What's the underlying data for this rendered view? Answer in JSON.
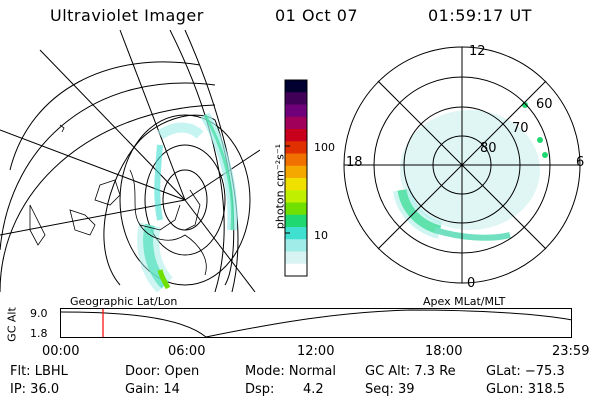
{
  "header": {
    "instrument": "Ultraviolet Imager",
    "date": "01 Oct 07",
    "time": "01:59:17 UT"
  },
  "colorbar": {
    "unit_label": "photon cm⁻²s⁻¹",
    "ticks": [
      "100",
      "10"
    ],
    "colors": [
      "#000030",
      "#400058",
      "#70007a",
      "#a0005a",
      "#c8001c",
      "#e03000",
      "#f07000",
      "#f5a800",
      "#f0e000",
      "#c0f000",
      "#70e000",
      "#20d870",
      "#40e0d0",
      "#a0ece8",
      "#d8f4f2",
      "#ffffff"
    ]
  },
  "left_panel": {
    "label": "Geographic Lat/Lon"
  },
  "right_panel": {
    "label": "Apex MLat/MLT",
    "mlt_labels": {
      "top": "12",
      "bottom": "0",
      "left": "18",
      "right": "6"
    },
    "lat_labels": [
      "60",
      "70",
      "80"
    ]
  },
  "timeline": {
    "ylabel": "GC Alt",
    "yticks": [
      "9.0",
      "1.8"
    ],
    "xticks": [
      "00:00",
      "06:00",
      "12:00",
      "18:00",
      "23:59"
    ],
    "marker_color": "#ff0000"
  },
  "info": {
    "filter": "Flt: LBHL",
    "ip": "IP: 36.0",
    "door": "Door: Open",
    "gain": "Gain: 14",
    "mode": "Mode: Normal",
    "dsp_label": "Dsp:",
    "dsp_value": "4.2",
    "gc_alt": "GC Alt: 7.3 Re",
    "seq": "Seq: 39",
    "glat": "GLat: −75.3",
    "glon": "GLon: 318.5"
  }
}
